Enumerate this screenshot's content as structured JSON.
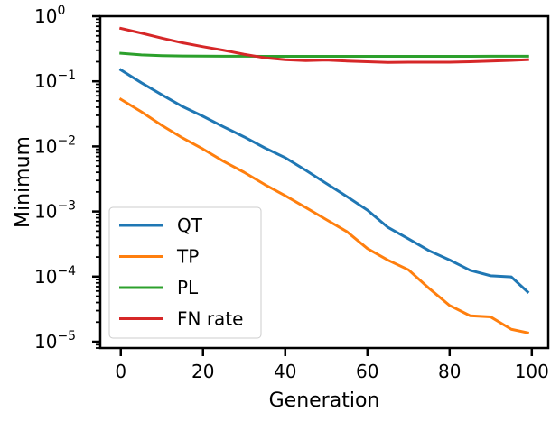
{
  "chart_data": {
    "type": "line",
    "title": "",
    "xlabel": "Generation",
    "ylabel": "Minimum",
    "yscale": "log",
    "xlim": [
      -5,
      104
    ],
    "ylim": [
      8e-06,
      1.0
    ],
    "xticks": [
      0,
      20,
      40,
      60,
      80,
      100
    ],
    "xtick_labels": [
      "0",
      "20",
      "40",
      "60",
      "80",
      "100"
    ],
    "yticks": [
      1e-05,
      0.0001,
      0.001,
      0.01,
      0.1,
      1
    ],
    "ytick_labels": [
      {
        "base": "10",
        "exp": "−5"
      },
      {
        "base": "10",
        "exp": "−4"
      },
      {
        "base": "10",
        "exp": "−3"
      },
      {
        "base": "10",
        "exp": "−2"
      },
      {
        "base": "10",
        "exp": "−1"
      },
      {
        "base": "10",
        "exp": "0"
      }
    ],
    "grid": false,
    "legend_position": "lower-left",
    "x": [
      0,
      5,
      10,
      15,
      20,
      25,
      30,
      35,
      40,
      45,
      50,
      55,
      60,
      65,
      70,
      75,
      80,
      85,
      90,
      95,
      99
    ],
    "series": [
      {
        "name": "QT",
        "color": "#1f77b4",
        "values": [
          0.15,
          0.095,
          0.062,
          0.041,
          0.029,
          0.02,
          0.014,
          0.0095,
          0.0067,
          0.0043,
          0.0027,
          0.0017,
          0.00105,
          0.00057,
          0.00038,
          0.00025,
          0.00018,
          0.000125,
          0.000103,
          9.9e-05,
          5.8e-05
        ]
      },
      {
        "name": "TP",
        "color": "#ff7f0e",
        "values": [
          0.053,
          0.034,
          0.021,
          0.0135,
          0.0091,
          0.0059,
          0.004,
          0.0026,
          0.00175,
          0.00115,
          0.00075,
          0.00049,
          0.00027,
          0.000179,
          0.000127,
          6.6e-05,
          3.6e-05,
          2.5e-05,
          2.4e-05,
          1.55e-05,
          1.37e-05
        ]
      },
      {
        "name": "PL",
        "color": "#2ca02c",
        "values": [
          0.27,
          0.255,
          0.248,
          0.245,
          0.244,
          0.243,
          0.243,
          0.242,
          0.242,
          0.242,
          0.242,
          0.242,
          0.242,
          0.242,
          0.242,
          0.242,
          0.242,
          0.242,
          0.243,
          0.243,
          0.243
        ]
      },
      {
        "name": "FN rate",
        "color": "#d62728",
        "values": [
          0.65,
          0.55,
          0.46,
          0.39,
          0.34,
          0.3,
          0.26,
          0.23,
          0.215,
          0.208,
          0.212,
          0.205,
          0.2,
          0.195,
          0.197,
          0.197,
          0.197,
          0.2,
          0.205,
          0.21,
          0.215
        ]
      }
    ]
  }
}
